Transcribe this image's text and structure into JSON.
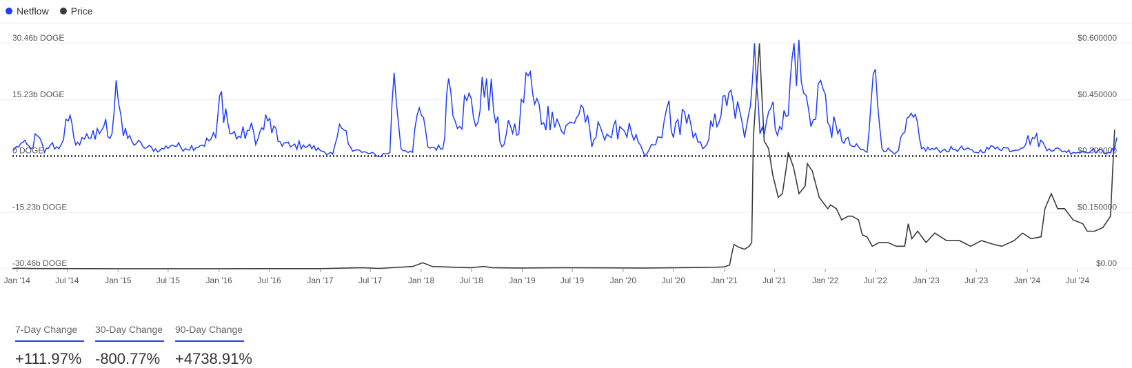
{
  "legend": {
    "netflow_label": "Netflow",
    "price_label": "Price"
  },
  "changes": [
    {
      "label": "7-Day Change",
      "value": "+111.97%"
    },
    {
      "label": "30-Day Change",
      "value": "-800.77%"
    },
    {
      "label": "90-Day Change",
      "value": "+4738.91%"
    }
  ],
  "colors": {
    "netflow": "#1f3cff",
    "price": "#3a3a3a",
    "accent": "#1f3cff",
    "grid": "#eeeeee"
  },
  "chart_data": {
    "type": "line",
    "title": "",
    "x_range": [
      "2013-12-15",
      "2024-11-20"
    ],
    "x_ticks": [
      "Jan '14",
      "Jul '14",
      "Jan '15",
      "Jul '15",
      "Jan '16",
      "Jul '16",
      "Jan '17",
      "Jul '17",
      "Jan '18",
      "Jul '18",
      "Jan '19",
      "Jul '19",
      "Jan '20",
      "Jul '20",
      "Jan '21",
      "Jul '21",
      "Jan '22",
      "Jul '22",
      "Jan '23",
      "Jul '23",
      "Jan '24",
      "Jul '24"
    ],
    "x_tick_dates": [
      "2014-01-01",
      "2014-07-01",
      "2015-01-01",
      "2015-07-01",
      "2016-01-01",
      "2016-07-01",
      "2017-01-01",
      "2017-07-01",
      "2018-01-01",
      "2018-07-01",
      "2019-01-01",
      "2019-07-01",
      "2020-01-01",
      "2020-07-01",
      "2021-01-01",
      "2021-07-01",
      "2022-01-01",
      "2022-07-01",
      "2023-01-01",
      "2023-07-01",
      "2024-01-01",
      "2024-07-01"
    ],
    "y_left": {
      "unit": "b DOGE",
      "range": [
        -30.46,
        30.46
      ],
      "ticks": [
        30.46,
        15.23,
        0,
        -15.23,
        -30.46
      ],
      "tick_labels": [
        "30.46b DOGE",
        "15.23b DOGE",
        "0 DOGE",
        "-15.23b DOGE",
        "-30.46b DOGE"
      ]
    },
    "y_right": {
      "unit": "USD",
      "range": [
        0,
        0.6
      ],
      "ticks": [
        0.6,
        0.45,
        0.3,
        0.15,
        0
      ],
      "tick_labels": [
        "$0.600000",
        "$0.450000",
        "$0.300000",
        "$0.150000",
        "$0.00"
      ]
    },
    "grid": true,
    "zero_line": "dotted",
    "legend_position": "top-left",
    "series": [
      {
        "name": "Netflow",
        "axis": "left",
        "color": "#1f3cff",
        "base_points": [
          [
            "2013-12-20",
            1.5
          ],
          [
            "2014-01-15",
            3.5
          ],
          [
            "2014-02-20",
            2
          ],
          [
            "2014-03-15",
            5.5
          ],
          [
            "2014-04-10",
            1
          ],
          [
            "2014-05-01",
            3
          ],
          [
            "2014-06-01",
            2
          ],
          [
            "2014-07-05",
            9.5
          ],
          [
            "2014-07-25",
            5
          ],
          [
            "2014-08-15",
            3
          ],
          [
            "2014-09-10",
            6
          ],
          [
            "2014-10-10",
            4.5
          ],
          [
            "2014-11-10",
            8
          ],
          [
            "2014-12-10",
            6
          ],
          [
            "2014-12-25",
            20.5
          ],
          [
            "2015-01-20",
            5.5
          ],
          [
            "2015-02-20",
            4
          ],
          [
            "2015-04-01",
            2.5
          ],
          [
            "2015-06-01",
            1.5
          ],
          [
            "2015-07-15",
            3
          ],
          [
            "2015-09-01",
            2
          ],
          [
            "2015-11-01",
            3
          ],
          [
            "2015-12-20",
            5
          ],
          [
            "2016-01-10",
            17.5
          ],
          [
            "2016-02-10",
            6
          ],
          [
            "2016-03-20",
            5
          ],
          [
            "2016-04-20",
            7
          ],
          [
            "2016-05-20",
            4.5
          ],
          [
            "2016-06-25",
            9.5
          ],
          [
            "2016-08-01",
            4
          ],
          [
            "2016-09-15",
            2.5
          ],
          [
            "2016-11-01",
            3
          ],
          [
            "2017-01-01",
            1.5
          ],
          [
            "2017-02-15",
            0.5
          ],
          [
            "2017-03-20",
            7.5
          ],
          [
            "2017-04-20",
            2.5
          ],
          [
            "2017-06-01",
            1
          ],
          [
            "2017-08-01",
            0
          ],
          [
            "2017-09-10",
            1
          ],
          [
            "2017-09-25",
            22.5
          ],
          [
            "2017-10-20",
            2
          ],
          [
            "2017-12-01",
            1
          ],
          [
            "2017-12-25",
            13
          ],
          [
            "2018-01-25",
            2.5
          ],
          [
            "2018-03-20",
            2
          ],
          [
            "2018-04-10",
            21
          ],
          [
            "2018-05-20",
            8
          ],
          [
            "2018-06-15",
            15
          ],
          [
            "2018-07-25",
            9
          ],
          [
            "2018-08-25",
            21
          ],
          [
            "2018-09-20",
            12
          ],
          [
            "2018-10-20",
            2.5
          ],
          [
            "2018-11-20",
            8
          ],
          [
            "2018-12-20",
            6
          ],
          [
            "2019-01-15",
            22.5
          ],
          [
            "2019-02-15",
            14
          ],
          [
            "2019-03-20",
            9
          ],
          [
            "2019-04-20",
            12
          ],
          [
            "2019-06-01",
            6
          ],
          [
            "2019-07-01",
            9
          ],
          [
            "2019-08-10",
            13
          ],
          [
            "2019-09-10",
            2.5
          ],
          [
            "2019-10-10",
            8
          ],
          [
            "2019-11-20",
            5
          ],
          [
            "2019-12-20",
            8
          ],
          [
            "2020-02-01",
            6
          ],
          [
            "2020-03-20",
            0
          ],
          [
            "2020-04-20",
            3
          ],
          [
            "2020-05-20",
            5
          ],
          [
            "2020-06-15",
            15
          ],
          [
            "2020-07-01",
            5
          ],
          [
            "2020-08-10",
            12
          ],
          [
            "2020-09-10",
            5
          ],
          [
            "2020-10-15",
            2
          ],
          [
            "2020-11-20",
            8
          ],
          [
            "2020-12-20",
            11
          ],
          [
            "2021-01-10",
            13.5
          ],
          [
            "2021-02-01",
            15
          ],
          [
            "2021-03-15",
            5
          ],
          [
            "2021-04-20",
            30.5
          ],
          [
            "2021-05-10",
            6
          ],
          [
            "2021-06-10",
            12
          ],
          [
            "2021-07-20",
            8
          ],
          [
            "2021-08-20",
            11
          ],
          [
            "2021-09-10",
            30.5
          ],
          [
            "2021-10-15",
            17
          ],
          [
            "2021-11-10",
            8
          ],
          [
            "2021-12-15",
            20.5
          ],
          [
            "2022-01-10",
            9
          ],
          [
            "2022-02-15",
            6
          ],
          [
            "2022-04-01",
            3
          ],
          [
            "2022-06-01",
            1
          ],
          [
            "2022-07-01",
            23.5
          ],
          [
            "2022-07-25",
            2
          ],
          [
            "2022-09-15",
            1
          ],
          [
            "2022-11-15",
            10.5
          ],
          [
            "2022-12-15",
            2
          ],
          [
            "2023-03-01",
            1.5
          ],
          [
            "2023-05-01",
            2
          ],
          [
            "2023-07-01",
            1
          ],
          [
            "2023-09-15",
            2.5
          ],
          [
            "2023-11-15",
            1.5
          ],
          [
            "2024-01-20",
            5
          ],
          [
            "2024-03-20",
            2
          ],
          [
            "2024-06-15",
            1
          ],
          [
            "2024-08-20",
            1.5
          ],
          [
            "2024-10-20",
            1
          ],
          [
            "2024-11-10",
            1.5
          ],
          [
            "2024-11-20",
            5
          ]
        ]
      },
      {
        "name": "Price",
        "axis": "right",
        "color": "#3a3a3a",
        "points": [
          [
            "2013-12-15",
            0.0005
          ],
          [
            "2014-01-01",
            0.0015
          ],
          [
            "2014-03-01",
            0.0006
          ],
          [
            "2015-01-01",
            0.0002
          ],
          [
            "2016-01-01",
            0.0002
          ],
          [
            "2017-01-01",
            0.0003
          ],
          [
            "2017-06-01",
            0.003
          ],
          [
            "2017-08-01",
            0.001
          ],
          [
            "2017-12-01",
            0.006
          ],
          [
            "2018-01-07",
            0.016
          ],
          [
            "2018-02-10",
            0.006
          ],
          [
            "2018-05-01",
            0.004
          ],
          [
            "2018-07-01",
            0.003
          ],
          [
            "2018-08-15",
            0.006
          ],
          [
            "2018-09-15",
            0.003
          ],
          [
            "2019-01-01",
            0.002
          ],
          [
            "2019-06-01",
            0.003
          ],
          [
            "2020-03-15",
            0.002
          ],
          [
            "2020-07-15",
            0.003
          ],
          [
            "2020-12-01",
            0.004
          ],
          [
            "2020-12-31",
            0.005
          ],
          [
            "2021-01-20",
            0.01
          ],
          [
            "2021-01-28",
            0.04
          ],
          [
            "2021-02-05",
            0.065
          ],
          [
            "2021-02-20",
            0.058
          ],
          [
            "2021-03-15",
            0.052
          ],
          [
            "2021-04-01",
            0.06
          ],
          [
            "2021-04-10",
            0.07
          ],
          [
            "2021-04-16",
            0.35
          ],
          [
            "2021-05-08",
            0.6
          ],
          [
            "2021-05-14",
            0.5
          ],
          [
            "2021-05-25",
            0.34
          ],
          [
            "2021-06-10",
            0.32
          ],
          [
            "2021-06-25",
            0.25
          ],
          [
            "2021-07-15",
            0.19
          ],
          [
            "2021-07-30",
            0.2
          ],
          [
            "2021-08-15",
            0.28
          ],
          [
            "2021-08-20",
            0.31
          ],
          [
            "2021-09-08",
            0.27
          ],
          [
            "2021-09-28",
            0.2
          ],
          [
            "2021-10-20",
            0.22
          ],
          [
            "2021-10-28",
            0.28
          ],
          [
            "2021-11-15",
            0.26
          ],
          [
            "2021-12-10",
            0.19
          ],
          [
            "2022-01-10",
            0.16
          ],
          [
            "2022-01-20",
            0.17
          ],
          [
            "2022-02-10",
            0.16
          ],
          [
            "2022-03-01",
            0.13
          ],
          [
            "2022-03-25",
            0.14
          ],
          [
            "2022-04-08",
            0.14
          ],
          [
            "2022-05-01",
            0.13
          ],
          [
            "2022-05-15",
            0.09
          ],
          [
            "2022-06-01",
            0.085
          ],
          [
            "2022-06-20",
            0.06
          ],
          [
            "2022-07-15",
            0.07
          ],
          [
            "2022-08-15",
            0.07
          ],
          [
            "2022-09-15",
            0.06
          ],
          [
            "2022-10-15",
            0.06
          ],
          [
            "2022-10-28",
            0.12
          ],
          [
            "2022-11-10",
            0.08
          ],
          [
            "2022-12-01",
            0.1
          ],
          [
            "2022-12-31",
            0.07
          ],
          [
            "2023-02-01",
            0.095
          ],
          [
            "2023-03-15",
            0.075
          ],
          [
            "2023-05-01",
            0.075
          ],
          [
            "2023-06-10",
            0.06
          ],
          [
            "2023-07-20",
            0.075
          ],
          [
            "2023-09-01",
            0.065
          ],
          [
            "2023-10-01",
            0.06
          ],
          [
            "2023-11-15",
            0.075
          ],
          [
            "2023-12-15",
            0.095
          ],
          [
            "2024-01-15",
            0.08
          ],
          [
            "2024-02-20",
            0.085
          ],
          [
            "2024-03-05",
            0.16
          ],
          [
            "2024-03-28",
            0.2
          ],
          [
            "2024-04-20",
            0.16
          ],
          [
            "2024-05-15",
            0.16
          ],
          [
            "2024-06-15",
            0.13
          ],
          [
            "2024-07-20",
            0.12
          ],
          [
            "2024-08-05",
            0.1
          ],
          [
            "2024-09-01",
            0.1
          ],
          [
            "2024-10-01",
            0.11
          ],
          [
            "2024-10-28",
            0.14
          ],
          [
            "2024-11-12",
            0.37
          ]
        ]
      }
    ]
  }
}
